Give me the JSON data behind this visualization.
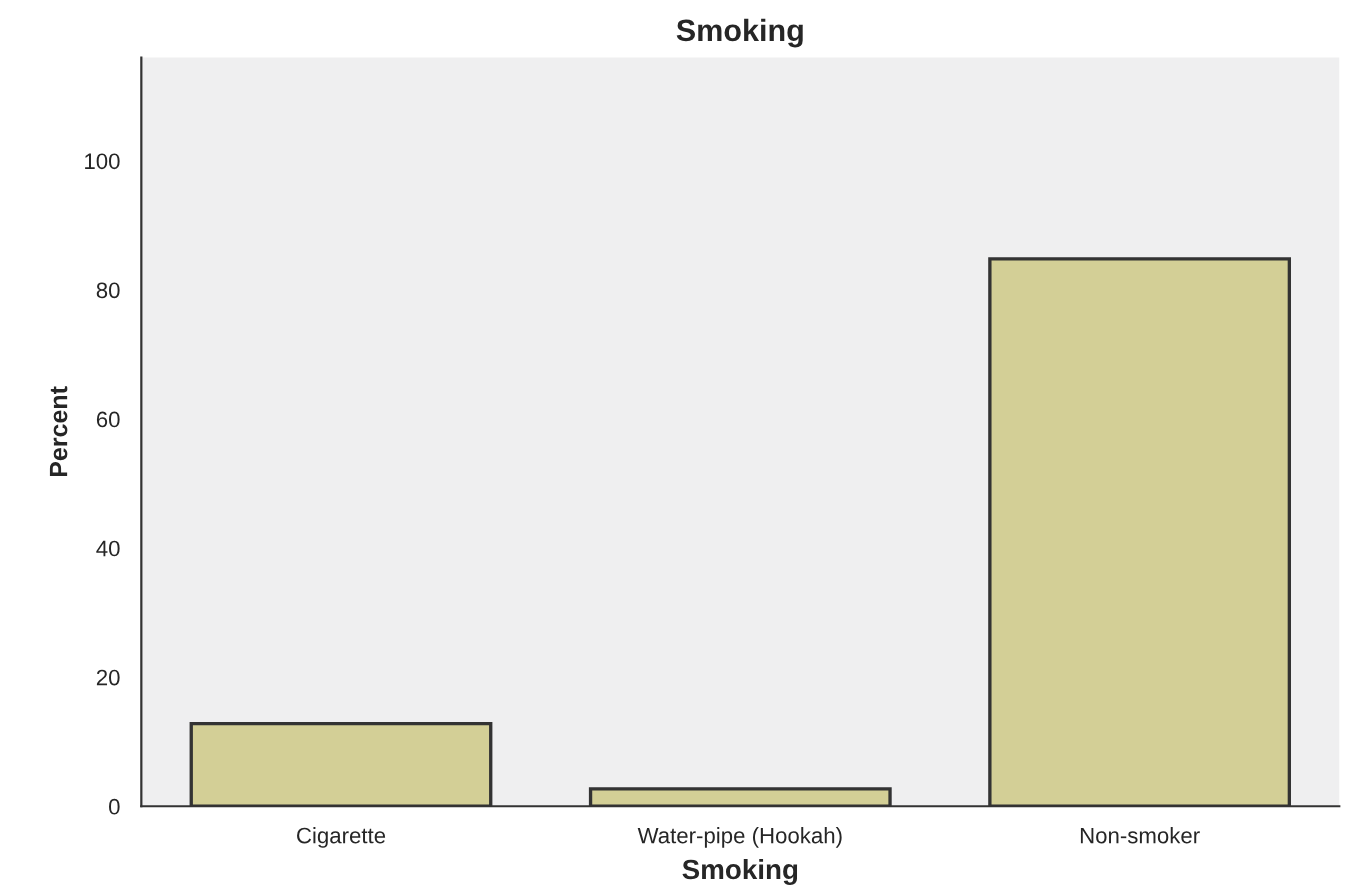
{
  "chart_data": {
    "type": "bar",
    "title": "Smoking",
    "xlabel": "Smoking",
    "ylabel": "Percent",
    "categories": [
      "Cigarette",
      "Water-pipe (Hookah)",
      "Non-smoker"
    ],
    "values": [
      12.8,
      2.7,
      84.8
    ],
    "color": "#d3cf96",
    "ylim": [
      0,
      116
    ],
    "yticks": [
      0,
      20,
      40,
      60,
      80,
      100
    ],
    "grid": false
  }
}
